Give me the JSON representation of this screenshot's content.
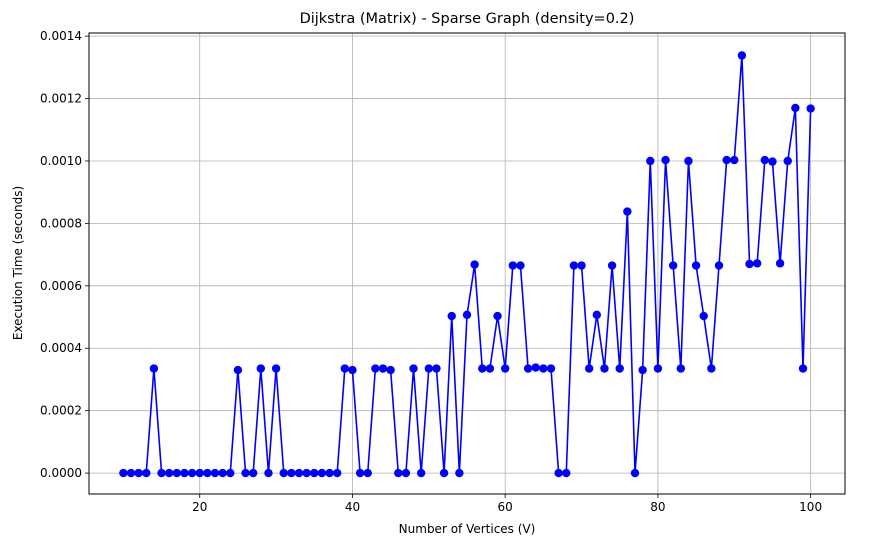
{
  "chart_data": {
    "type": "line",
    "title": "Dijkstra (Matrix) - Sparse Graph (density=0.2)",
    "xlabel": "Number of Vertices (V)",
    "ylabel": "Execution Time (seconds)",
    "xlim": [
      5.5,
      104.5
    ],
    "ylim": [
      -6.7e-05,
      0.00141
    ],
    "xticks": [
      20,
      40,
      60,
      80,
      100
    ],
    "xtick_labels": [
      "20",
      "40",
      "60",
      "80",
      "100"
    ],
    "yticks": [
      0,
      0.0002,
      0.0004,
      0.0006,
      0.0008,
      0.001,
      0.0012,
      0.0014
    ],
    "ytick_labels": [
      "0.0000",
      "0.0002",
      "0.0004",
      "0.0006",
      "0.0008",
      "0.0010",
      "0.0012",
      "0.0014"
    ],
    "grid": true,
    "series_color": "#0000ff",
    "x": [
      10,
      11,
      12,
      13,
      14,
      15,
      16,
      17,
      18,
      19,
      20,
      21,
      22,
      23,
      24,
      25,
      26,
      27,
      28,
      29,
      30,
      31,
      32,
      33,
      34,
      35,
      36,
      37,
      38,
      39,
      40,
      41,
      42,
      43,
      44,
      45,
      46,
      47,
      48,
      49,
      50,
      51,
      52,
      53,
      54,
      55,
      56,
      57,
      58,
      59,
      60,
      61,
      62,
      63,
      64,
      65,
      66,
      67,
      68,
      69,
      70,
      71,
      72,
      73,
      74,
      75,
      76,
      77,
      78,
      79,
      80,
      81,
      82,
      83,
      84,
      85,
      86,
      87,
      88,
      89,
      90,
      91,
      92,
      93,
      94,
      95,
      96,
      97,
      98,
      99,
      100
    ],
    "values": [
      0,
      0,
      0,
      0,
      0.000335,
      0,
      0,
      0,
      0,
      0,
      0,
      0,
      0,
      0,
      0,
      0.00033,
      0,
      0,
      0.000335,
      0,
      0.000335,
      0,
      0,
      0,
      0,
      0,
      0,
      0,
      0,
      0.000335,
      0.00033,
      0,
      0,
      0.000335,
      0.000335,
      0.00033,
      0,
      0,
      0.000335,
      0,
      0.000335,
      0.000335,
      0,
      0.000503,
      0,
      0.000507,
      0.000668,
      0.000335,
      0.000335,
      0.000503,
      0.000335,
      0.000665,
      0.000665,
      0.000335,
      0.000338,
      0.000335,
      0.000335,
      0,
      0,
      0.000665,
      0.000665,
      0.000335,
      0.000507,
      0.000335,
      0.000665,
      0.000335,
      0.000838,
      0,
      0.00033,
      0.001,
      0.000335,
      0.001003,
      0.000665,
      0.000335,
      0.001,
      0.000665,
      0.000503,
      0.000335,
      0.000665,
      0.001003,
      0.001003,
      0.001338,
      0.00067,
      0.000672,
      0.001003,
      0.000998,
      0.000672,
      0.001,
      0.00117,
      0.000335,
      0.001168
    ]
  }
}
